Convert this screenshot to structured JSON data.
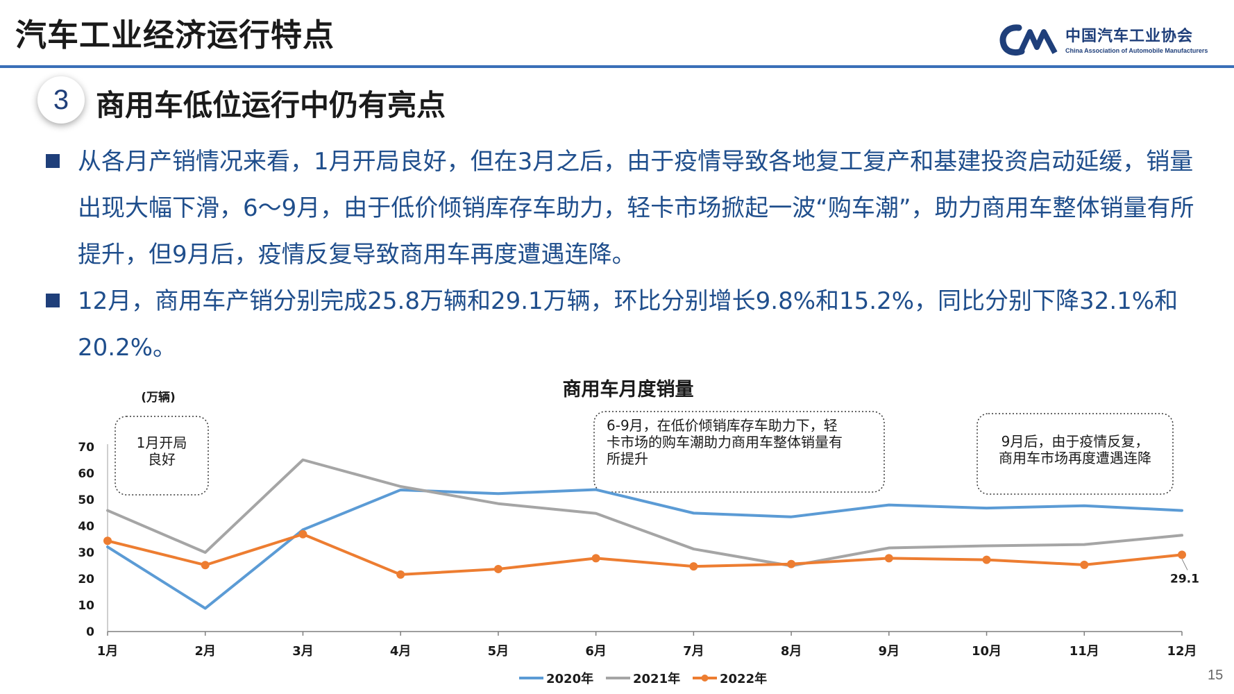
{
  "header": {
    "title": "汽车工业经济运行特点",
    "logo_cn": "中国汽车工业协会",
    "logo_en": "China Association of Automobile Manufacturers"
  },
  "section": {
    "number": "3",
    "title": "商用车低位运行中仍有亮点"
  },
  "bullets": [
    {
      "text": "从各月产销情况来看，1月开局良好，但在3月之后，由于疫情导致各地复工复产和基建投资启动延缓，销量出现大幅下滑，6～9月，由于低价倾销库存车助力，轻卡市场掀起一波“购车潮”，助力商用车整体销量有所提升，但9月后，疫情反复导致商用车再度遭遇连降。"
    },
    {
      "text": "12月，商用车产销分别完成25.8万辆和29.1万辆，环比分别增长9.8%和15.2%，同比分别下降32.1%和20.2%。"
    }
  ],
  "page_number": "15",
  "colors": {
    "primary": "#1f3f7a",
    "text_blue": "#1f4e8c",
    "s2020": "#5b9bd5",
    "s2021": "#a5a5a5",
    "s2022": "#ed7d31"
  },
  "chart_data": {
    "type": "line",
    "title": "商用车月度销量",
    "unit_label": "(万辆)",
    "categories": [
      "1月",
      "2月",
      "3月",
      "4月",
      "5月",
      "6月",
      "7月",
      "8月",
      "9月",
      "10月",
      "11月",
      "12月"
    ],
    "ylim": [
      0,
      70
    ],
    "yticks": [
      0,
      10,
      20,
      30,
      40,
      50,
      60,
      70
    ],
    "series": [
      {
        "name": "2020年",
        "color": "#5b9bd5",
        "marker": false,
        "values": [
          32.1,
          8.8,
          38.6,
          53.7,
          52.3,
          53.8,
          44.9,
          43.5,
          48.0,
          46.8,
          47.7,
          45.9
        ]
      },
      {
        "name": "2021年",
        "color": "#a5a5a5",
        "marker": false,
        "values": [
          45.9,
          30.0,
          65.1,
          55.0,
          48.5,
          44.8,
          31.3,
          24.9,
          31.7,
          32.5,
          33.0,
          36.5
        ]
      },
      {
        "name": "2022年",
        "color": "#ed7d31",
        "marker": true,
        "values": [
          34.4,
          25.2,
          36.9,
          21.6,
          23.7,
          27.8,
          24.7,
          25.6,
          27.8,
          27.2,
          25.3,
          29.1
        ]
      }
    ],
    "data_labels": [
      {
        "series": 2,
        "index": 11,
        "text": "29.1"
      }
    ],
    "annotations": [
      {
        "lines": [
          "1月开局",
          "良好"
        ]
      },
      {
        "lines": [
          "6-9月，在低价倾销库存车助力下，轻",
          "卡市场的购车潮助力商用车整体销量有",
          "所提升"
        ]
      },
      {
        "lines": [
          "9月后，由于疫情反复，",
          "商用车市场再度遭遇连降"
        ]
      }
    ],
    "legend": "bottom",
    "grid": false
  }
}
